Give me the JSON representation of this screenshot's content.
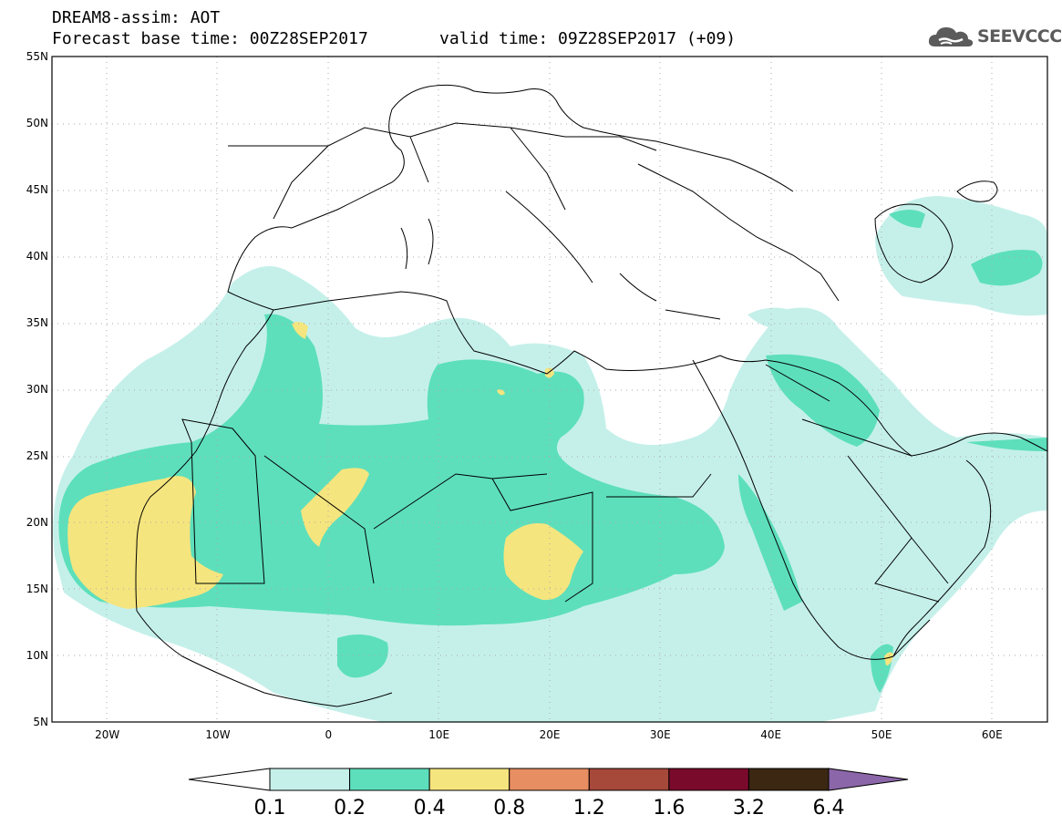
{
  "title": {
    "line1": "DREAM8-assim: AOT",
    "base_time": "Forecast base time: 00Z28SEP2017",
    "valid_time": "valid time: 09Z28SEP2017 (+09)"
  },
  "logo": {
    "text": "SEEVCCC",
    "icon": "cloud-icon"
  },
  "map": {
    "lat_labels": [
      "55N",
      "50N",
      "45N",
      "40N",
      "35N",
      "30N",
      "25N",
      "20N",
      "15N",
      "10N",
      "5N"
    ],
    "lon_labels": [
      "20W",
      "10W",
      "0",
      "10E",
      "20E",
      "30E",
      "40E",
      "50E",
      "60E"
    ],
    "lon_range": [
      -25,
      65
    ],
    "lat_range": [
      5,
      55
    ],
    "field": "AOT"
  },
  "colorbar": {
    "labels": [
      "0.1",
      "0.2",
      "0.4",
      "0.8",
      "1.2",
      "1.6",
      "3.2",
      "6.4"
    ],
    "colors": [
      "#c5f0ea",
      "#5ddfbc",
      "#f5e57e",
      "#e78e62",
      "#a6483a",
      "#7a0a2c",
      "#3b2712",
      "#8b66a8"
    ],
    "under_color": "#ffffff"
  }
}
